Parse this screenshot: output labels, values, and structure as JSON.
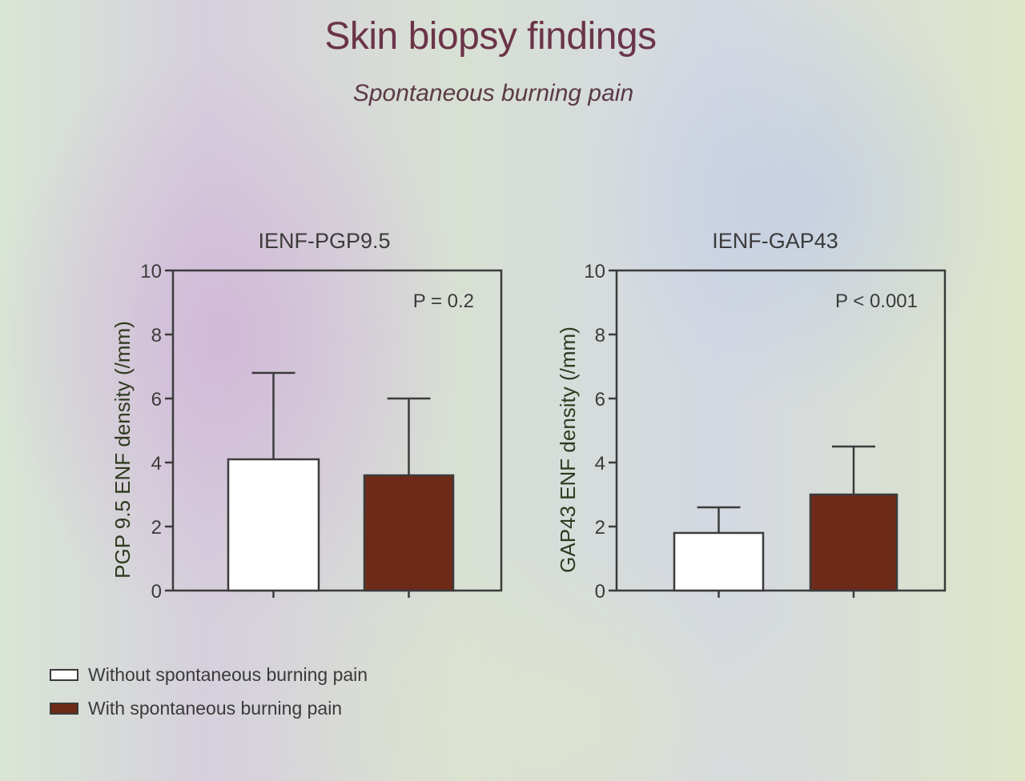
{
  "slide": {
    "title": "Skin biopsy findings",
    "subtitle": "Spontaneous burning pain"
  },
  "legend": [
    {
      "label": "Without spontaneous burning pain",
      "color": "#ffffff"
    },
    {
      "label": "With spontaneous burning pain",
      "color": "#6e2a18"
    }
  ],
  "chart_data": [
    {
      "type": "bar",
      "title": "IENF-PGP9.5",
      "ylabel": "PGP 9.5 ENF density (/mm)",
      "xlabel": "",
      "ylim": [
        0,
        10
      ],
      "yticks": [
        0,
        2,
        4,
        6,
        8,
        10
      ],
      "annotation": "P = 0.2",
      "categories": [
        "Without spontaneous burning pain",
        "With spontaneous burning pain"
      ],
      "values": [
        4.1,
        3.6
      ],
      "errors": [
        2.7,
        2.4
      ],
      "colors": [
        "#ffffff",
        "#6e2a18"
      ],
      "grid": false
    },
    {
      "type": "bar",
      "title": "IENF-GAP43",
      "ylabel": "GAP43 ENF density (/mm)",
      "xlabel": "",
      "ylim": [
        0,
        10
      ],
      "yticks": [
        0,
        2,
        4,
        6,
        8,
        10
      ],
      "annotation": "P < 0.001",
      "categories": [
        "Without spontaneous burning pain",
        "With spontaneous burning pain"
      ],
      "values": [
        1.8,
        3.0
      ],
      "errors": [
        0.8,
        1.5
      ],
      "colors": [
        "#ffffff",
        "#6e2a18"
      ],
      "grid": false
    }
  ]
}
